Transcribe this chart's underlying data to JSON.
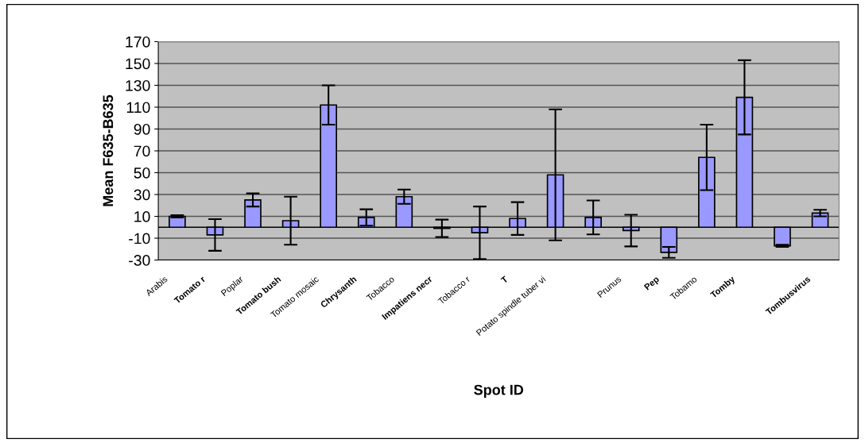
{
  "chart_data": {
    "type": "bar",
    "xlabel": "Spot ID",
    "ylabel": "Mean F635-B635",
    "categories": [
      "Arabis",
      "Tomato r",
      "Poplar",
      "Tomato bush",
      "Tomato mosaic",
      "Chrysanth",
      "Tobacco",
      "Impatiens necr",
      "Tobacco r",
      "T",
      "Potato spindle tuber vi",
      null,
      "Prunus",
      "Pep",
      "Tobamo",
      "Tomby",
      null,
      "Tombusvirus"
    ],
    "series": [
      {
        "color": "#9999ff",
        "values": [
          10,
          -7,
          25,
          6,
          112,
          9,
          28,
          -1,
          -5,
          8,
          48,
          9,
          -3,
          -23,
          64,
          119,
          -17,
          13
        ],
        "errors": [
          1,
          14.5,
          6,
          22,
          18,
          7.5,
          6.5,
          8,
          24,
          15,
          60,
          15.5,
          14.5,
          5,
          30,
          34,
          1,
          3
        ]
      }
    ],
    "ylim": [
      -30,
      170
    ],
    "yticks": [
      -30,
      -10,
      10,
      30,
      50,
      70,
      90,
      110,
      130,
      150,
      170
    ],
    "grid": "y"
  }
}
